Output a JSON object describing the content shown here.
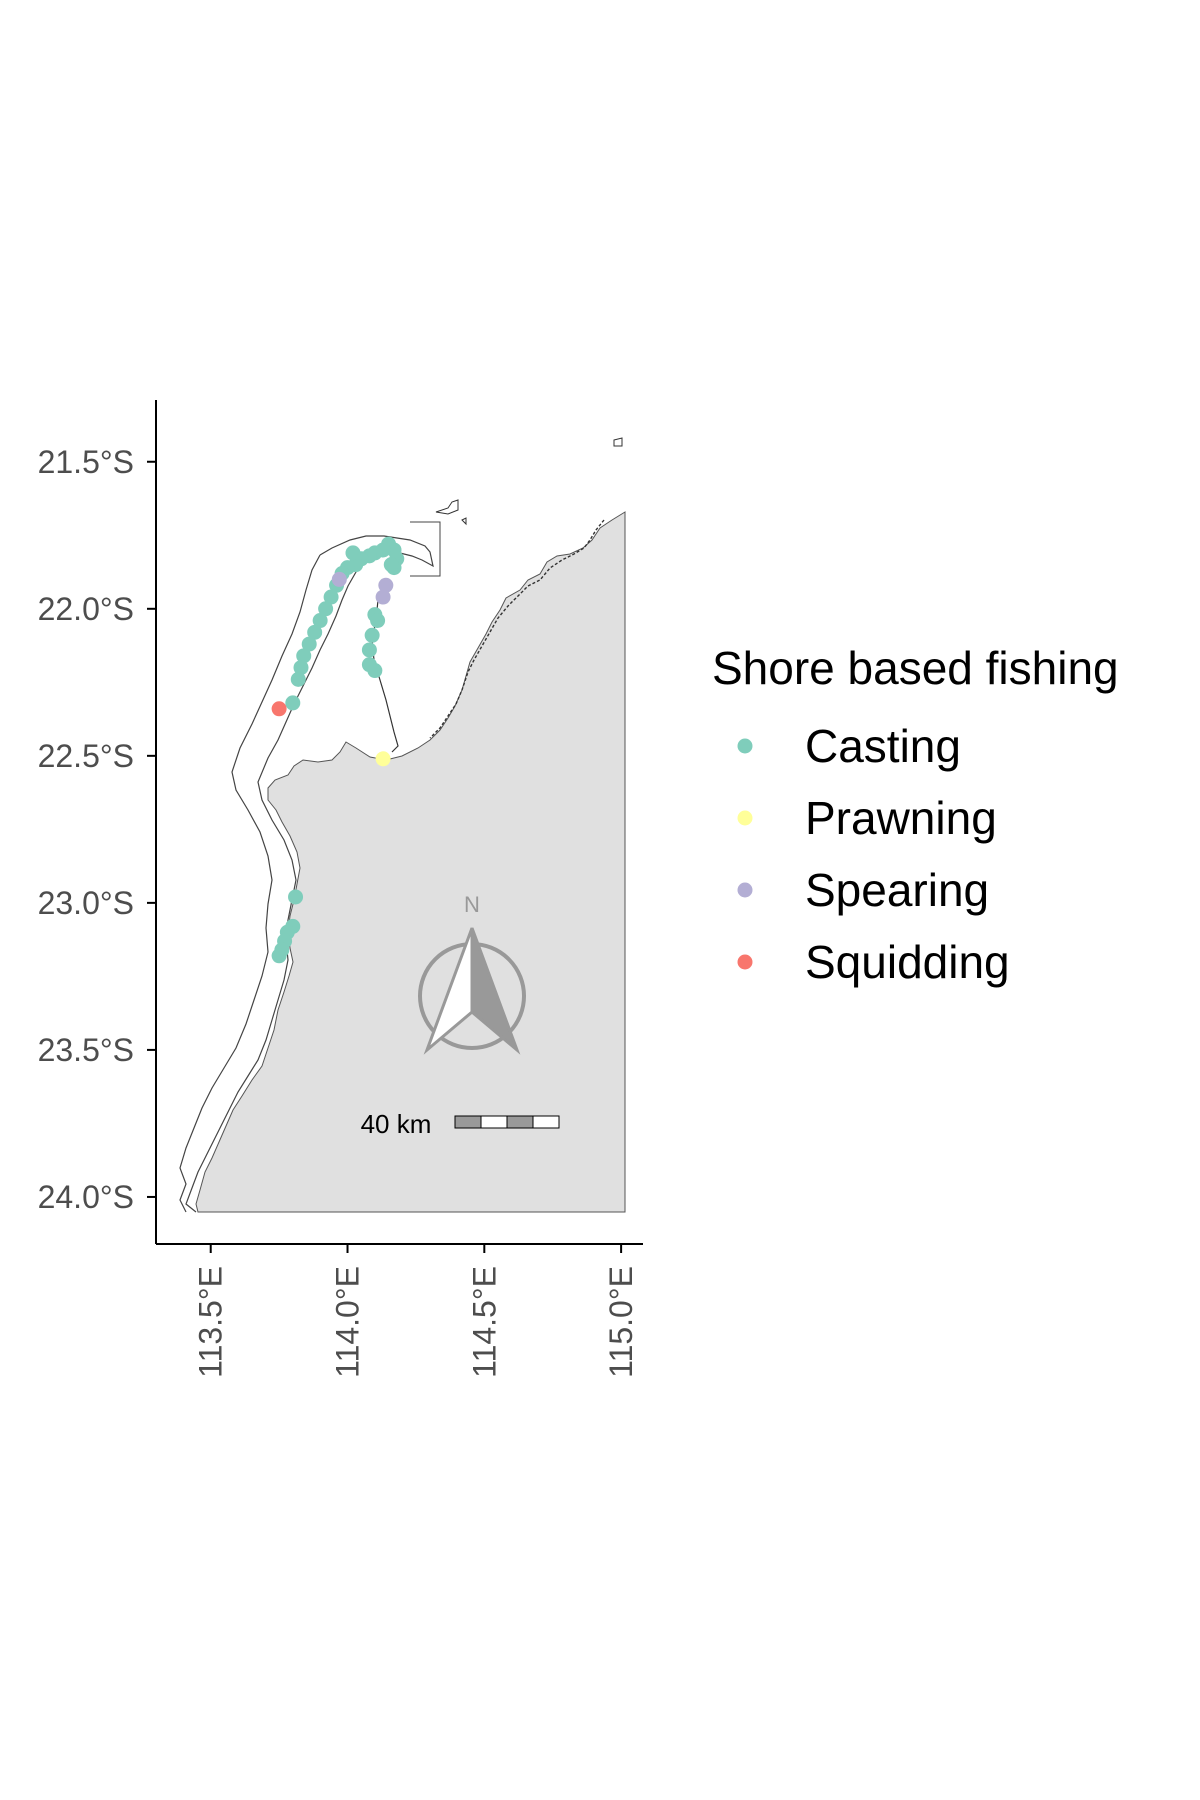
{
  "map": {
    "y_ticks": [
      {
        "value": -21.5,
        "label": "21.5°S"
      },
      {
        "value": -22.0,
        "label": "22.0°S"
      },
      {
        "value": -22.5,
        "label": "22.5°S"
      },
      {
        "value": -23.0,
        "label": "23.0°S"
      },
      {
        "value": -23.5,
        "label": "23.5°S"
      },
      {
        "value": -24.0,
        "label": "24.0°S"
      }
    ],
    "x_ticks": [
      {
        "value": 113.5,
        "label": "113.5°E"
      },
      {
        "value": 114.0,
        "label": "114.0°E"
      },
      {
        "value": 114.5,
        "label": "114.5°E"
      },
      {
        "value": 115.0,
        "label": "115.0°E"
      }
    ],
    "north_arrow_label": "N",
    "scale_bar_label": "40 km",
    "land_color": "#e0e0e0",
    "outline_color": "#333333"
  },
  "legend": {
    "title": "Shore based fishing",
    "items": [
      {
        "label": "Casting",
        "color": "#7fcdbb"
      },
      {
        "label": "Prawning",
        "color": "#ffff99"
      },
      {
        "label": "Spearing",
        "color": "#b3aed4"
      },
      {
        "label": "Squidding",
        "color": "#f8766d"
      }
    ]
  },
  "chart_data": {
    "type": "scatter",
    "xlabel": "",
    "ylabel": "",
    "xlim": [
      113.3,
      115.08
    ],
    "ylim": [
      -24.16,
      -21.29
    ],
    "series": [
      {
        "name": "Casting",
        "color": "#7fcdbb",
        "points": [
          [
            114.15,
            -21.78
          ],
          [
            114.17,
            -21.8
          ],
          [
            114.13,
            -21.8
          ],
          [
            114.1,
            -21.81
          ],
          [
            114.08,
            -21.82
          ],
          [
            114.05,
            -21.83
          ],
          [
            114.03,
            -21.85
          ],
          [
            114.02,
            -21.81
          ],
          [
            114.0,
            -21.86
          ],
          [
            113.98,
            -21.88
          ],
          [
            113.96,
            -21.92
          ],
          [
            113.94,
            -21.96
          ],
          [
            113.92,
            -22.0
          ],
          [
            113.9,
            -22.04
          ],
          [
            113.88,
            -22.08
          ],
          [
            113.86,
            -22.12
          ],
          [
            113.84,
            -22.16
          ],
          [
            113.83,
            -22.2
          ],
          [
            113.82,
            -22.24
          ],
          [
            113.8,
            -22.32
          ],
          [
            114.18,
            -21.83
          ],
          [
            114.17,
            -21.86
          ],
          [
            114.16,
            -21.85
          ],
          [
            114.1,
            -22.02
          ],
          [
            114.11,
            -22.04
          ],
          [
            114.09,
            -22.09
          ],
          [
            114.08,
            -22.14
          ],
          [
            114.08,
            -22.19
          ],
          [
            114.1,
            -22.21
          ],
          [
            113.81,
            -22.98
          ],
          [
            113.8,
            -23.08
          ],
          [
            113.78,
            -23.1
          ],
          [
            113.77,
            -23.13
          ],
          [
            113.76,
            -23.16
          ],
          [
            113.75,
            -23.18
          ]
        ]
      },
      {
        "name": "Prawning",
        "color": "#ffff99",
        "points": [
          [
            114.13,
            -22.51
          ]
        ]
      },
      {
        "name": "Spearing",
        "color": "#b3aed4",
        "points": [
          [
            113.97,
            -21.9
          ],
          [
            114.14,
            -21.92
          ],
          [
            114.13,
            -21.96
          ]
        ]
      },
      {
        "name": "Squidding",
        "color": "#f8766d",
        "points": [
          [
            113.75,
            -22.34
          ]
        ]
      }
    ]
  }
}
